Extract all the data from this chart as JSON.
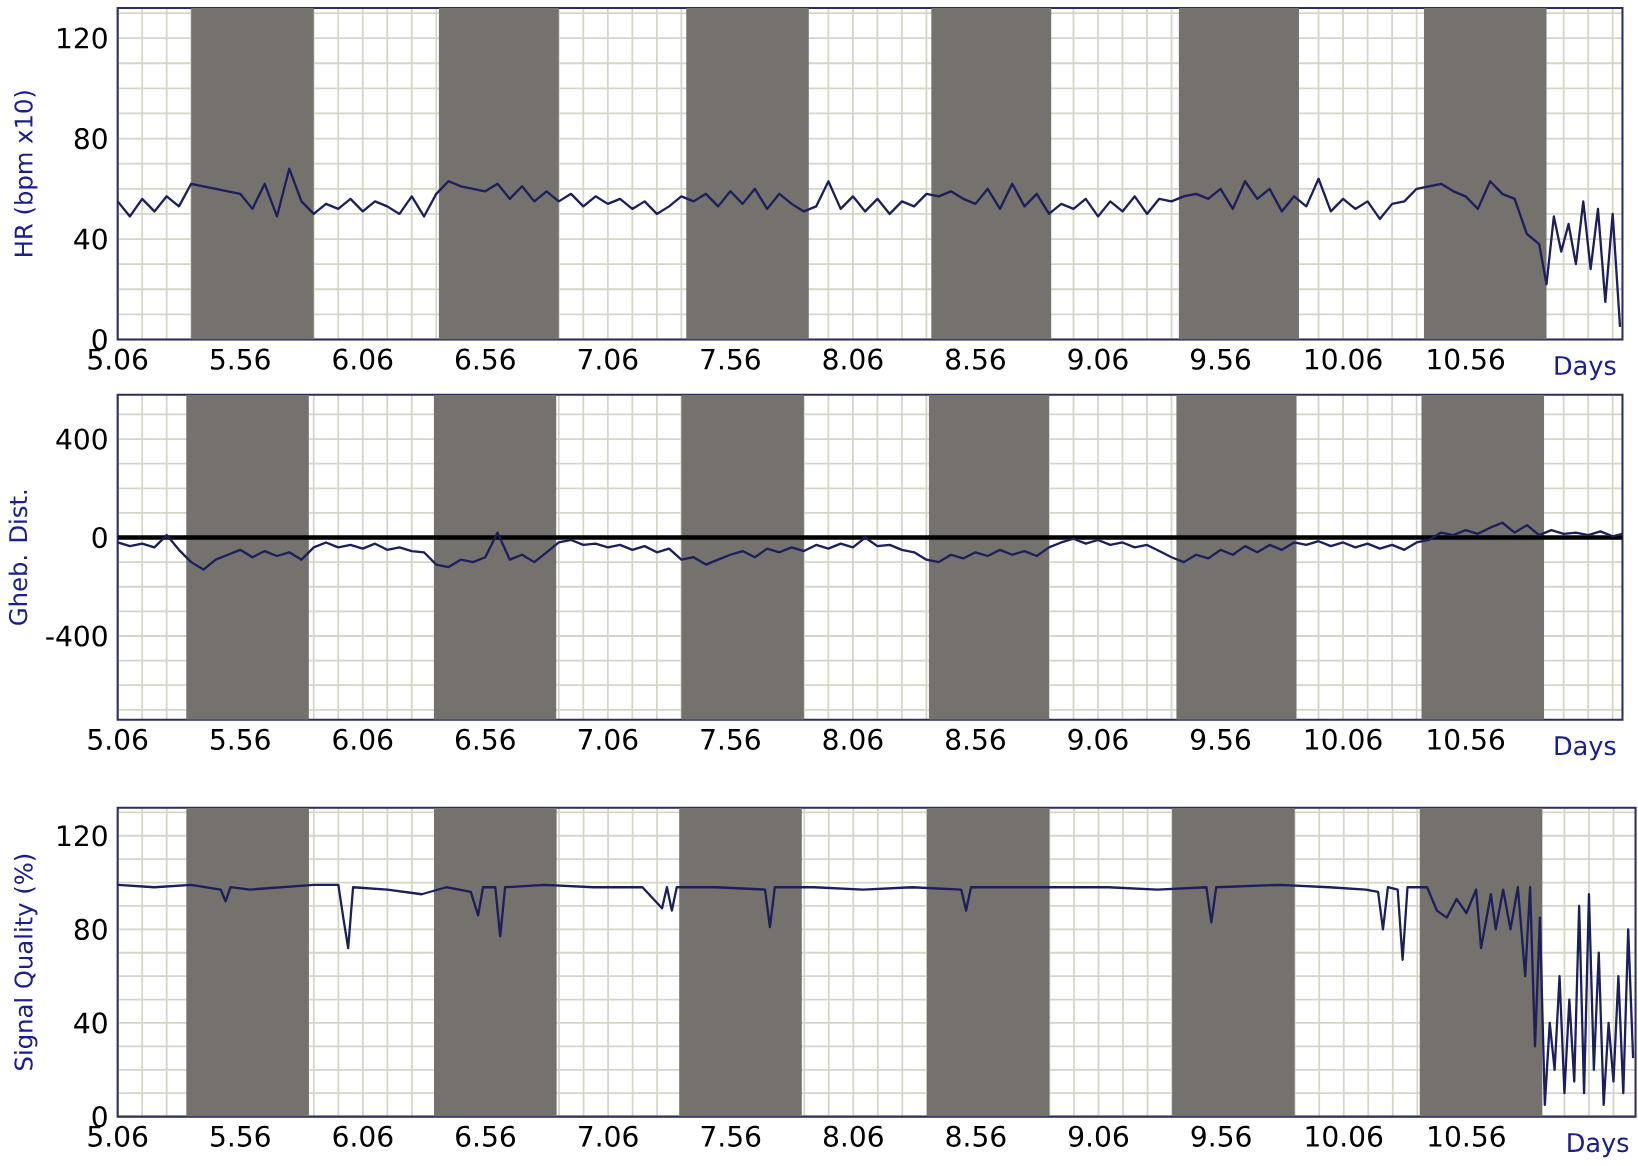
{
  "chart_data": [
    {
      "type": "line",
      "xlabel": "Days",
      "ylabel": "HR (bpm x10)",
      "xlim": [
        5.06,
        11.2
      ],
      "ylim": [
        0,
        132
      ],
      "grid": true,
      "xticks": [
        5.06,
        {
          "value": 5.16,
          "label": null
        },
        {
          "value": 5.26,
          "label": null
        },
        {
          "value": 5.36,
          "label": null
        },
        {
          "value": 5.46,
          "label": null
        },
        5.56,
        {
          "value": 5.66,
          "label": null
        },
        {
          "value": 5.76,
          "label": null
        },
        {
          "value": 5.86,
          "label": null
        },
        {
          "value": 5.96,
          "label": null
        },
        6.06,
        {
          "value": 6.16,
          "label": null
        },
        {
          "value": 6.26,
          "label": null
        },
        {
          "value": 6.36,
          "label": null
        },
        {
          "value": 6.46,
          "label": null
        },
        6.56,
        {
          "value": 6.66,
          "label": null
        },
        {
          "value": 6.76,
          "label": null
        },
        {
          "value": 6.86,
          "label": null
        },
        {
          "value": 6.96,
          "label": null
        },
        7.06,
        {
          "value": 7.16,
          "label": null
        },
        {
          "value": 7.26,
          "label": null
        },
        {
          "value": 7.36,
          "label": null
        },
        {
          "value": 7.46,
          "label": null
        },
        7.56,
        {
          "value": 7.66,
          "label": null
        },
        {
          "value": 7.76,
          "label": null
        },
        {
          "value": 7.86,
          "label": null
        },
        {
          "value": 7.96,
          "label": null
        },
        8.06,
        {
          "value": 8.16,
          "label": null
        },
        {
          "value": 8.26,
          "label": null
        },
        {
          "value": 8.36,
          "label": null
        },
        {
          "value": 8.46,
          "label": null
        },
        8.56,
        {
          "value": 8.66,
          "label": null
        },
        {
          "value": 8.76,
          "label": null
        },
        {
          "value": 8.86,
          "label": null
        },
        {
          "value": 8.96,
          "label": null
        },
        9.06,
        {
          "value": 9.16,
          "label": null
        },
        {
          "value": 9.26,
          "label": null
        },
        {
          "value": 9.36,
          "label": null
        },
        {
          "value": 9.46,
          "label": null
        },
        9.56,
        {
          "value": 9.66,
          "label": null
        },
        {
          "value": 9.76,
          "label": null
        },
        {
          "value": 9.86,
          "label": null
        },
        {
          "value": 9.96,
          "label": null
        },
        10.06,
        {
          "value": 10.16,
          "label": null
        },
        {
          "value": 10.26,
          "label": null
        },
        {
          "value": 10.36,
          "label": null
        },
        {
          "value": 10.46,
          "label": null
        },
        10.56,
        {
          "value": 10.66,
          "label": null
        },
        {
          "value": 10.76,
          "label": null
        },
        {
          "value": 10.86,
          "label": null
        },
        {
          "value": 10.96,
          "label": null
        },
        {
          "value": 11.06,
          "label": null
        },
        {
          "value": 11.16,
          "label": null
        }
      ],
      "yticks": [
        0,
        {
          "value": 10,
          "label": null
        },
        {
          "value": 20,
          "label": null
        },
        {
          "value": 30,
          "label": null
        },
        40,
        {
          "value": 50,
          "label": null
        },
        {
          "value": 60,
          "label": null
        },
        {
          "value": 70,
          "label": null
        },
        80,
        {
          "value": 90,
          "label": null
        },
        {
          "value": 100,
          "label": null
        },
        {
          "value": 110,
          "label": null
        },
        120,
        {
          "value": 130,
          "label": null
        }
      ],
      "bands": [
        {
          "axis": "x",
          "from": 5.36,
          "to": 5.86,
          "color": "#75716d"
        },
        {
          "axis": "x",
          "from": 6.37,
          "to": 6.86,
          "color": "#75716d"
        },
        {
          "axis": "x",
          "from": 7.38,
          "to": 7.88,
          "color": "#75716d"
        },
        {
          "axis": "x",
          "from": 8.38,
          "to": 8.87,
          "color": "#75716d"
        },
        {
          "axis": "x",
          "from": 9.39,
          "to": 9.88,
          "color": "#75716d"
        },
        {
          "axis": "x",
          "from": 10.39,
          "to": 10.89,
          "color": "#75716d"
        }
      ],
      "series": [
        {
          "color": "#1b1f5c",
          "x": [
            5.06,
            5.11,
            5.16,
            5.21,
            5.26,
            5.31,
            5.36,
            5.41,
            5.46,
            5.51,
            5.56,
            5.61,
            5.66,
            5.71,
            5.76,
            5.81,
            5.86,
            5.91,
            5.96,
            6.01,
            6.06,
            6.11,
            6.16,
            6.21,
            6.26,
            6.31,
            6.36,
            6.41,
            6.46,
            6.51,
            6.56,
            6.61,
            6.66,
            6.71,
            6.76,
            6.81,
            6.86,
            6.91,
            6.96,
            7.01,
            7.06,
            7.11,
            7.16,
            7.21,
            7.26,
            7.31,
            7.36,
            7.41,
            7.46,
            7.51,
            7.56,
            7.61,
            7.66,
            7.71,
            7.76,
            7.81,
            7.86,
            7.91,
            7.96,
            8.01,
            8.06,
            8.11,
            8.16,
            8.21,
            8.26,
            8.31,
            8.36,
            8.41,
            8.46,
            8.51,
            8.56,
            8.61,
            8.66,
            8.71,
            8.76,
            8.81,
            8.86,
            8.91,
            8.96,
            9.01,
            9.06,
            9.11,
            9.16,
            9.21,
            9.26,
            9.31,
            9.36,
            9.41,
            9.46,
            9.51,
            9.56,
            9.61,
            9.66,
            9.71,
            9.76,
            9.81,
            9.86,
            9.91,
            9.96,
            10.01,
            10.06,
            10.11,
            10.16,
            10.21,
            10.26,
            10.31,
            10.36,
            10.41,
            10.46,
            10.51,
            10.56,
            10.61,
            10.66,
            10.71,
            10.76,
            10.81,
            10.86,
            10.89,
            10.92,
            10.95,
            10.98,
            11.01,
            11.04,
            11.07,
            11.1,
            11.13,
            11.16,
            11.19
          ],
          "values": [
            55,
            49,
            56,
            51,
            57,
            53,
            62,
            61,
            60,
            59,
            58,
            52,
            62,
            49,
            68,
            55,
            50,
            54,
            52,
            56,
            51,
            55,
            53,
            50,
            57,
            49,
            58,
            63,
            61,
            60,
            59,
            62,
            56,
            61,
            55,
            59,
            55,
            58,
            53,
            57,
            54,
            56,
            52,
            55,
            50,
            53,
            57,
            55,
            58,
            53,
            59,
            54,
            60,
            52,
            58,
            54,
            51,
            53,
            63,
            52,
            57,
            51,
            56,
            50,
            55,
            53,
            58,
            57,
            59,
            56,
            54,
            60,
            52,
            62,
            53,
            58,
            50,
            54,
            52,
            56,
            49,
            55,
            51,
            57,
            50,
            56,
            55,
            57,
            58,
            56,
            60,
            52,
            63,
            56,
            60,
            51,
            57,
            53,
            64,
            51,
            56,
            52,
            55,
            48,
            54,
            55,
            60,
            61,
            62,
            59,
            57,
            52,
            63,
            58,
            56,
            42,
            38,
            22,
            49,
            35,
            46,
            30,
            55,
            28,
            52,
            15,
            50,
            5
          ]
        }
      ]
    },
    {
      "type": "line",
      "xlabel": "Days",
      "ylabel": "Gheb. Dist.",
      "xlim": [
        5.06,
        11.2
      ],
      "ylim": [
        -740,
        580
      ],
      "grid": true,
      "xticks": [
        5.06,
        {
          "value": 5.16,
          "label": null
        },
        {
          "value": 5.26,
          "label": null
        },
        {
          "value": 5.36,
          "label": null
        },
        {
          "value": 5.46,
          "label": null
        },
        5.56,
        {
          "value": 5.66,
          "label": null
        },
        {
          "value": 5.76,
          "label": null
        },
        {
          "value": 5.86,
          "label": null
        },
        {
          "value": 5.96,
          "label": null
        },
        6.06,
        {
          "value": 6.16,
          "label": null
        },
        {
          "value": 6.26,
          "label": null
        },
        {
          "value": 6.36,
          "label": null
        },
        {
          "value": 6.46,
          "label": null
        },
        6.56,
        {
          "value": 6.66,
          "label": null
        },
        {
          "value": 6.76,
          "label": null
        },
        {
          "value": 6.86,
          "label": null
        },
        {
          "value": 6.96,
          "label": null
        },
        7.06,
        {
          "value": 7.16,
          "label": null
        },
        {
          "value": 7.26,
          "label": null
        },
        {
          "value": 7.36,
          "label": null
        },
        {
          "value": 7.46,
          "label": null
        },
        7.56,
        {
          "value": 7.66,
          "label": null
        },
        {
          "value": 7.76,
          "label": null
        },
        {
          "value": 7.86,
          "label": null
        },
        {
          "value": 7.96,
          "label": null
        },
        8.06,
        {
          "value": 8.16,
          "label": null
        },
        {
          "value": 8.26,
          "label": null
        },
        {
          "value": 8.36,
          "label": null
        },
        {
          "value": 8.46,
          "label": null
        },
        8.56,
        {
          "value": 8.66,
          "label": null
        },
        {
          "value": 8.76,
          "label": null
        },
        {
          "value": 8.86,
          "label": null
        },
        {
          "value": 8.96,
          "label": null
        },
        9.06,
        {
          "value": 9.16,
          "label": null
        },
        {
          "value": 9.26,
          "label": null
        },
        {
          "value": 9.36,
          "label": null
        },
        {
          "value": 9.46,
          "label": null
        },
        9.56,
        {
          "value": 9.66,
          "label": null
        },
        {
          "value": 9.76,
          "label": null
        },
        {
          "value": 9.86,
          "label": null
        },
        {
          "value": 9.96,
          "label": null
        },
        10.06,
        {
          "value": 10.16,
          "label": null
        },
        {
          "value": 10.26,
          "label": null
        },
        {
          "value": 10.36,
          "label": null
        },
        {
          "value": 10.46,
          "label": null
        },
        10.56,
        {
          "value": 10.66,
          "label": null
        },
        {
          "value": 10.76,
          "label": null
        },
        {
          "value": 10.86,
          "label": null
        },
        {
          "value": 10.96,
          "label": null
        },
        {
          "value": 11.06,
          "label": null
        },
        {
          "value": 11.16,
          "label": null
        }
      ],
      "yticks": [
        {
          "value": -700,
          "label": null
        },
        {
          "value": -600,
          "label": null
        },
        {
          "value": -500,
          "label": null
        },
        -400,
        {
          "value": -300,
          "label": null
        },
        {
          "value": -200,
          "label": null
        },
        {
          "value": -100,
          "label": null
        },
        0,
        {
          "value": 100,
          "label": null
        },
        {
          "value": 200,
          "label": null
        },
        {
          "value": 300,
          "label": null
        },
        400,
        {
          "value": 500,
          "label": null
        }
      ],
      "ref_lines": [
        {
          "axis": "y",
          "value": 0,
          "color": "#000000"
        }
      ],
      "bands": [
        {
          "axis": "x",
          "from": 5.34,
          "to": 5.84,
          "color": "#75716d"
        },
        {
          "axis": "x",
          "from": 6.35,
          "to": 6.85,
          "color": "#75716d"
        },
        {
          "axis": "x",
          "from": 7.36,
          "to": 7.86,
          "color": "#75716d"
        },
        {
          "axis": "x",
          "from": 8.37,
          "to": 8.86,
          "color": "#75716d"
        },
        {
          "axis": "x",
          "from": 9.38,
          "to": 9.87,
          "color": "#75716d"
        },
        {
          "axis": "x",
          "from": 10.38,
          "to": 10.88,
          "color": "#75716d"
        }
      ],
      "series": [
        {
          "color": "#1b1f5c",
          "x": [
            5.06,
            5.11,
            5.16,
            5.21,
            5.26,
            5.31,
            5.36,
            5.41,
            5.46,
            5.51,
            5.56,
            5.61,
            5.66,
            5.71,
            5.76,
            5.81,
            5.86,
            5.91,
            5.96,
            6.01,
            6.06,
            6.11,
            6.16,
            6.21,
            6.26,
            6.31,
            6.36,
            6.41,
            6.46,
            6.51,
            6.56,
            6.61,
            6.66,
            6.71,
            6.76,
            6.81,
            6.86,
            6.91,
            6.96,
            7.01,
            7.06,
            7.11,
            7.16,
            7.21,
            7.26,
            7.31,
            7.36,
            7.41,
            7.46,
            7.51,
            7.56,
            7.61,
            7.66,
            7.71,
            7.76,
            7.81,
            7.86,
            7.91,
            7.96,
            8.01,
            8.06,
            8.11,
            8.16,
            8.21,
            8.26,
            8.31,
            8.36,
            8.41,
            8.46,
            8.51,
            8.56,
            8.61,
            8.66,
            8.71,
            8.76,
            8.81,
            8.86,
            8.91,
            8.96,
            9.01,
            9.06,
            9.11,
            9.16,
            9.21,
            9.26,
            9.31,
            9.36,
            9.41,
            9.46,
            9.51,
            9.56,
            9.61,
            9.66,
            9.71,
            9.76,
            9.81,
            9.86,
            9.91,
            9.96,
            10.01,
            10.06,
            10.11,
            10.16,
            10.21,
            10.26,
            10.31,
            10.36,
            10.41,
            10.46,
            10.51,
            10.56,
            10.61,
            10.66,
            10.71,
            10.76,
            10.81,
            10.86,
            10.91,
            10.96,
            11.01,
            11.06,
            11.11,
            11.16,
            11.2
          ],
          "values": [
            -20,
            -35,
            -25,
            -40,
            10,
            -50,
            -100,
            -130,
            -90,
            -70,
            -50,
            -80,
            -55,
            -75,
            -60,
            -90,
            -40,
            -20,
            -40,
            -30,
            -45,
            -25,
            -50,
            -40,
            -55,
            -60,
            -110,
            -120,
            -90,
            -100,
            -80,
            20,
            -90,
            -70,
            -100,
            -60,
            -20,
            -10,
            -30,
            -25,
            -40,
            -30,
            -50,
            -35,
            -60,
            -45,
            -90,
            -80,
            -110,
            -90,
            -70,
            -55,
            -80,
            -45,
            -60,
            -40,
            -55,
            -30,
            -45,
            -25,
            -40,
            0,
            -35,
            -30,
            -50,
            -60,
            -90,
            -100,
            -70,
            -85,
            -60,
            -75,
            -50,
            -70,
            -55,
            -75,
            -40,
            -20,
            -5,
            -25,
            -10,
            -30,
            -20,
            -40,
            -30,
            -55,
            -80,
            -100,
            -70,
            -85,
            -50,
            -70,
            -35,
            -60,
            -30,
            -50,
            -20,
            -30,
            -15,
            -35,
            -20,
            -40,
            -25,
            -45,
            -30,
            -50,
            -20,
            -10,
            20,
            10,
            30,
            15,
            40,
            60,
            20,
            50,
            10,
            30,
            15,
            20,
            10,
            25,
            5,
            15
          ]
        }
      ]
    },
    {
      "type": "line",
      "xlabel": "Days",
      "ylabel": "Signal Quality (%)",
      "xlim": [
        5.06,
        11.25
      ],
      "ylim": [
        0,
        132
      ],
      "grid": true,
      "xticks": [
        5.06,
        {
          "value": 5.16,
          "label": null
        },
        {
          "value": 5.26,
          "label": null
        },
        {
          "value": 5.36,
          "label": null
        },
        {
          "value": 5.46,
          "label": null
        },
        5.56,
        {
          "value": 5.66,
          "label": null
        },
        {
          "value": 5.76,
          "label": null
        },
        {
          "value": 5.86,
          "label": null
        },
        {
          "value": 5.96,
          "label": null
        },
        6.06,
        {
          "value": 6.16,
          "label": null
        },
        {
          "value": 6.26,
          "label": null
        },
        {
          "value": 6.36,
          "label": null
        },
        {
          "value": 6.46,
          "label": null
        },
        6.56,
        {
          "value": 6.66,
          "label": null
        },
        {
          "value": 6.76,
          "label": null
        },
        {
          "value": 6.86,
          "label": null
        },
        {
          "value": 6.96,
          "label": null
        },
        7.06,
        {
          "value": 7.16,
          "label": null
        },
        {
          "value": 7.26,
          "label": null
        },
        {
          "value": 7.36,
          "label": null
        },
        {
          "value": 7.46,
          "label": null
        },
        7.56,
        {
          "value": 7.66,
          "label": null
        },
        {
          "value": 7.76,
          "label": null
        },
        {
          "value": 7.86,
          "label": null
        },
        {
          "value": 7.96,
          "label": null
        },
        8.06,
        {
          "value": 8.16,
          "label": null
        },
        {
          "value": 8.26,
          "label": null
        },
        {
          "value": 8.36,
          "label": null
        },
        {
          "value": 8.46,
          "label": null
        },
        8.56,
        {
          "value": 8.66,
          "label": null
        },
        {
          "value": 8.76,
          "label": null
        },
        {
          "value": 8.86,
          "label": null
        },
        {
          "value": 8.96,
          "label": null
        },
        9.06,
        {
          "value": 9.16,
          "label": null
        },
        {
          "value": 9.26,
          "label": null
        },
        {
          "value": 9.36,
          "label": null
        },
        {
          "value": 9.46,
          "label": null
        },
        9.56,
        {
          "value": 9.66,
          "label": null
        },
        {
          "value": 9.76,
          "label": null
        },
        {
          "value": 9.86,
          "label": null
        },
        {
          "value": 9.96,
          "label": null
        },
        10.06,
        {
          "value": 10.16,
          "label": null
        },
        {
          "value": 10.26,
          "label": null
        },
        {
          "value": 10.36,
          "label": null
        },
        {
          "value": 10.46,
          "label": null
        },
        10.56,
        {
          "value": 10.66,
          "label": null
        },
        {
          "value": 10.76,
          "label": null
        },
        {
          "value": 10.86,
          "label": null
        },
        {
          "value": 10.96,
          "label": null
        },
        {
          "value": 11.06,
          "label": null
        },
        {
          "value": 11.16,
          "label": null
        }
      ],
      "yticks": [
        0,
        {
          "value": 10,
          "label": null
        },
        {
          "value": 20,
          "label": null
        },
        {
          "value": 30,
          "label": null
        },
        40,
        {
          "value": 50,
          "label": null
        },
        {
          "value": 60,
          "label": null
        },
        {
          "value": 70,
          "label": null
        },
        80,
        {
          "value": 90,
          "label": null
        },
        {
          "value": 100,
          "label": null
        },
        {
          "value": 110,
          "label": null
        },
        120,
        {
          "value": 130,
          "label": null
        }
      ],
      "bands": [
        {
          "axis": "x",
          "from": 5.34,
          "to": 5.84,
          "color": "#75716d"
        },
        {
          "axis": "x",
          "from": 6.35,
          "to": 6.85,
          "color": "#75716d"
        },
        {
          "axis": "x",
          "from": 7.35,
          "to": 7.85,
          "color": "#75716d"
        },
        {
          "axis": "x",
          "from": 8.36,
          "to": 8.86,
          "color": "#75716d"
        },
        {
          "axis": "x",
          "from": 9.36,
          "to": 9.86,
          "color": "#75716d"
        },
        {
          "axis": "x",
          "from": 10.37,
          "to": 10.87,
          "color": "#75716d"
        }
      ],
      "series": [
        {
          "color": "#1b1f5c",
          "x": [
            5.06,
            5.21,
            5.36,
            5.48,
            5.5,
            5.52,
            5.6,
            5.86,
            5.96,
            5.98,
            6.0,
            6.02,
            6.16,
            6.3,
            6.4,
            6.5,
            6.53,
            6.55,
            6.6,
            6.62,
            6.64,
            6.8,
            7.0,
            7.2,
            7.28,
            7.3,
            7.32,
            7.34,
            7.5,
            7.7,
            7.72,
            7.74,
            7.9,
            8.1,
            8.3,
            8.5,
            8.52,
            8.54,
            8.8,
            9.1,
            9.3,
            9.5,
            9.52,
            9.54,
            9.8,
            10.0,
            10.15,
            10.2,
            10.22,
            10.24,
            10.28,
            10.3,
            10.32,
            10.4,
            10.44,
            10.48,
            10.52,
            10.56,
            10.6,
            10.62,
            10.66,
            10.68,
            10.71,
            10.74,
            10.77,
            10.8,
            10.82,
            10.84,
            10.86,
            10.88,
            10.9,
            10.92,
            10.94,
            10.96,
            10.98,
            11.0,
            11.02,
            11.04,
            11.06,
            11.08,
            11.1,
            11.12,
            11.14,
            11.16,
            11.18,
            11.2,
            11.22,
            11.24
          ],
          "values": [
            99,
            98,
            99,
            97,
            92,
            98,
            97,
            99,
            99,
            85,
            72,
            98,
            97,
            95,
            98,
            96,
            86,
            98,
            98,
            77,
            98,
            99,
            98,
            98,
            89,
            98,
            88,
            98,
            98,
            97,
            81,
            98,
            98,
            97,
            98,
            97,
            88,
            98,
            98,
            98,
            97,
            98,
            83,
            98,
            99,
            98,
            97,
            96,
            80,
            98,
            97,
            67,
            98,
            98,
            88,
            85,
            93,
            87,
            97,
            72,
            95,
            80,
            97,
            80,
            98,
            60,
            98,
            30,
            85,
            5,
            40,
            20,
            60,
            10,
            50,
            15,
            90,
            10,
            95,
            20,
            70,
            5,
            40,
            15,
            60,
            10,
            80,
            25
          ]
        }
      ]
    }
  ]
}
